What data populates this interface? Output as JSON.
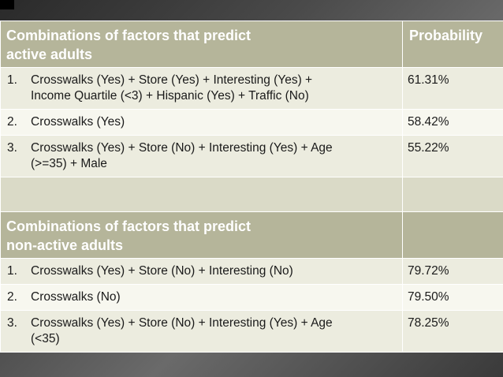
{
  "active": {
    "header": [
      "Combinations of factors that predict",
      "active adults"
    ],
    "probability_header": "Probability",
    "rows": [
      {
        "num": "1.",
        "lines": [
          "Crosswalks (Yes) + Store (Yes) + Interesting (Yes) +",
          "Income Quartile (<3) + Hispanic (Yes) + Traffic (No)"
        ],
        "probability": "61.31%"
      },
      {
        "num": "2.",
        "lines": [
          "Crosswalks (Yes)"
        ],
        "probability": "58.42%"
      },
      {
        "num": "3.",
        "lines": [
          "Crosswalks (Yes) + Store (No) + Interesting (Yes) + Age",
          "(>=35) + Male"
        ],
        "probability": "55.22%"
      }
    ]
  },
  "non_active": {
    "header": [
      "Combinations of factors that predict",
      "non-active adults"
    ],
    "rows": [
      {
        "num": "1.",
        "lines": [
          "Crosswalks (Yes) + Store (No) + Interesting (No)"
        ],
        "probability": "79.72%"
      },
      {
        "num": "2.",
        "lines": [
          "Crosswalks (No)"
        ],
        "probability": "79.50%"
      },
      {
        "num": "3.",
        "lines": [
          "Crosswalks (Yes) + Store (No) + Interesting (Yes) + Age",
          "(<35)"
        ],
        "probability": "78.25%"
      }
    ]
  }
}
